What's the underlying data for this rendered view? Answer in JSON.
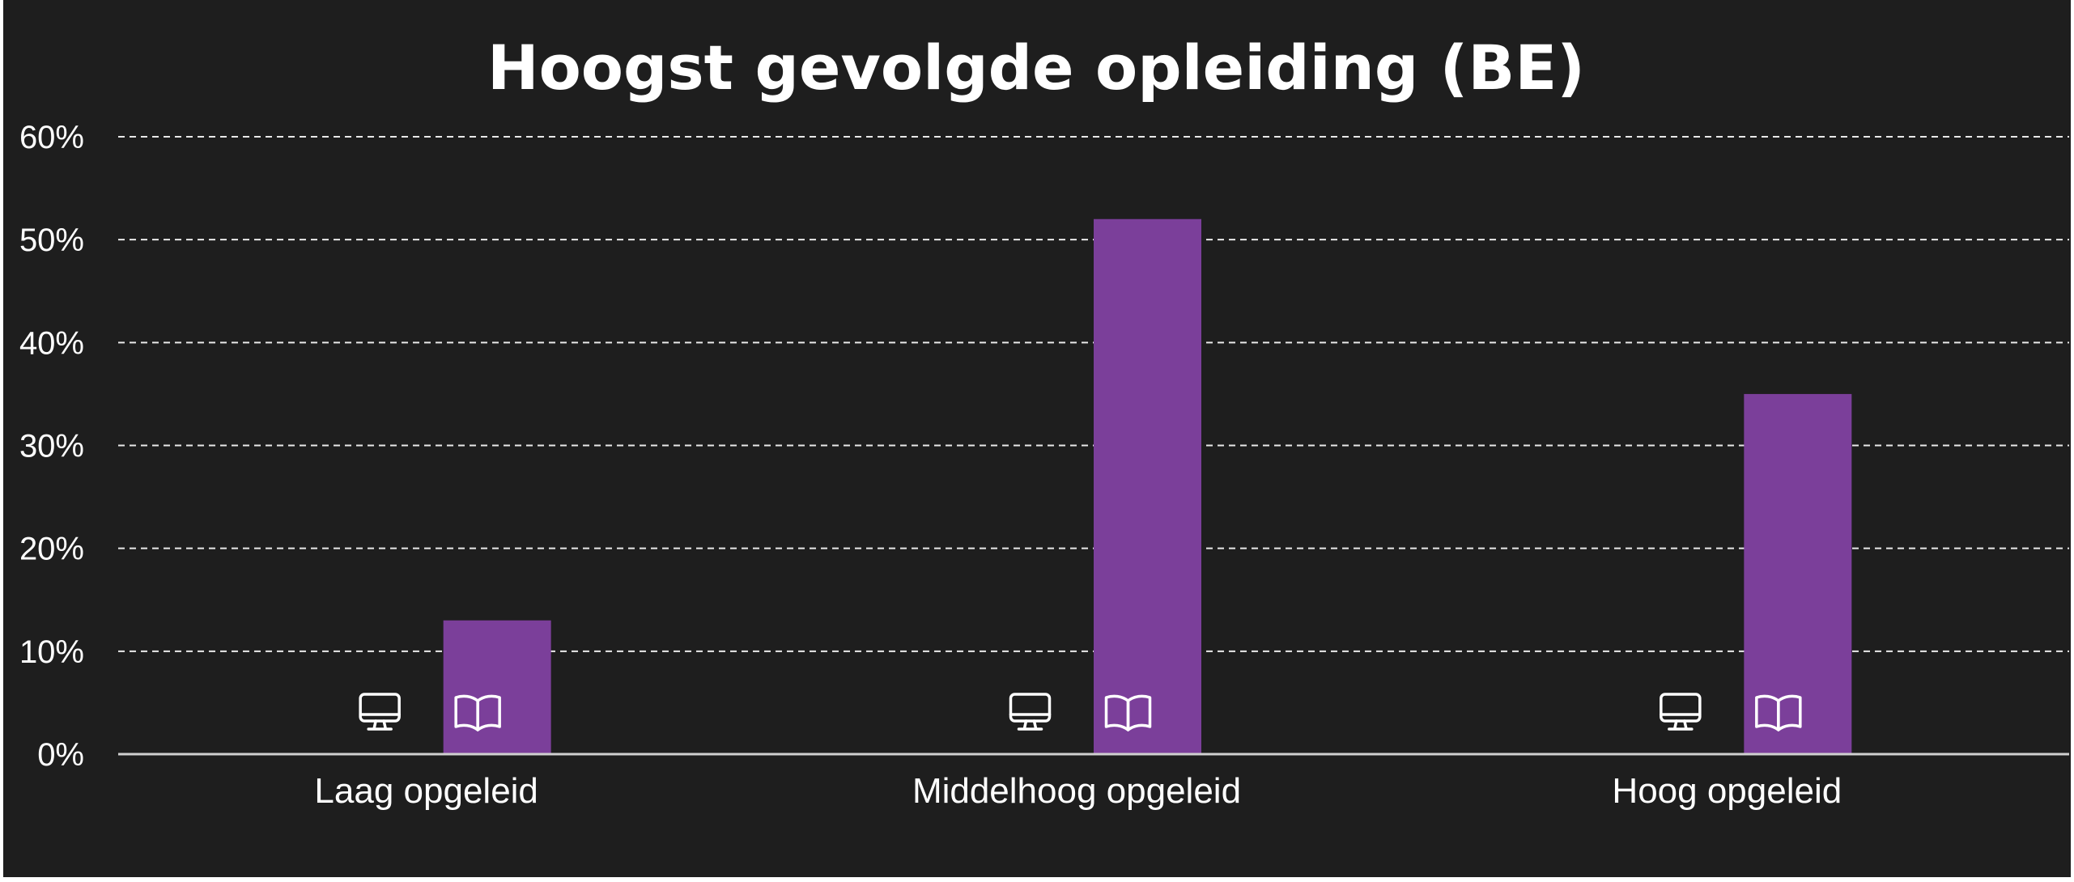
{
  "chart_data": {
    "type": "bar",
    "title": "Hoogst gevolgde opleiding (BE)",
    "xlabel": "",
    "ylabel": "",
    "categories": [
      "Laag opgeleid",
      "Middelhoog opgeleid",
      "Hoog opgeleid"
    ],
    "series": [
      {
        "values": [
          0,
          0,
          0
        ],
        "icon": "monitor-icon"
      },
      {
        "values": [
          13,
          52,
          35
        ],
        "icon": "book-icon",
        "color": "#7b3f9a"
      }
    ],
    "ylim": [
      0,
      60
    ],
    "yticks": [
      0,
      10,
      20,
      30,
      40,
      50,
      60
    ],
    "ytick_labels": [
      "0%",
      "10%",
      "20%",
      "30%",
      "40%",
      "50%",
      "60%"
    ],
    "grid": true,
    "legend": "none",
    "background_color": "#1e1e1e",
    "text_color": "#ffffff"
  }
}
